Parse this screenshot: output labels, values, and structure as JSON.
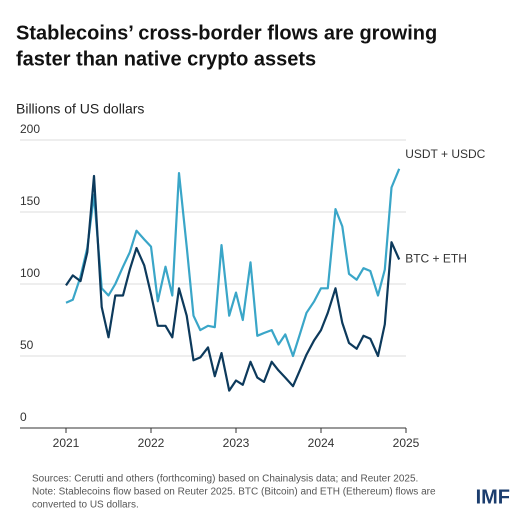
{
  "chart_data": {
    "type": "line",
    "title": [
      "Stablecoins’ cross-border flows are growing",
      "faster than native crypto assets"
    ],
    "y_axis_label": "Billions of US dollars",
    "x": [
      2021.0,
      2021.08,
      2021.17,
      2021.25,
      2021.33,
      2021.42,
      2021.5,
      2021.58,
      2021.67,
      2021.75,
      2021.83,
      2021.92,
      2022.0,
      2022.08,
      2022.17,
      2022.25,
      2022.33,
      2022.42,
      2022.5,
      2022.58,
      2022.67,
      2022.75,
      2022.83,
      2022.92,
      2023.0,
      2023.08,
      2023.17,
      2023.25,
      2023.33,
      2023.42,
      2023.5,
      2023.58,
      2023.67,
      2023.75,
      2023.83,
      2023.92,
      2024.0,
      2024.08,
      2024.17,
      2024.25,
      2024.33,
      2024.42,
      2024.5,
      2024.58,
      2024.67,
      2024.75,
      2024.83,
      2024.92
    ],
    "series": [
      {
        "name": "USDT + USDC",
        "color": "#3aa6c8",
        "values": [
          87,
          89,
          105,
          125,
          162,
          97,
          92,
          100,
          112,
          122,
          137,
          131,
          126,
          88,
          112,
          92,
          177,
          126,
          78,
          68,
          71,
          70,
          127,
          78,
          94,
          75,
          115,
          64,
          66,
          68,
          58,
          65,
          50,
          65,
          80,
          88,
          97,
          97,
          152,
          140,
          107,
          103,
          111,
          109,
          92,
          110,
          167,
          180
        ]
      },
      {
        "name": "BTC + ETH",
        "color": "#0d3a5c",
        "values": [
          99,
          106,
          102,
          122,
          175,
          84,
          63,
          92,
          92,
          110,
          125,
          113,
          93,
          71,
          71,
          63,
          97,
          78,
          47,
          49,
          56,
          36,
          52,
          26,
          33,
          30,
          46,
          35,
          32,
          46,
          40,
          35,
          29,
          40,
          51,
          61,
          68,
          80,
          97,
          73,
          59,
          55,
          64,
          62,
          50,
          72,
          129,
          117
        ]
      }
    ],
    "xlim": [
      2021,
      2025
    ],
    "xticks": [
      2021,
      2022,
      2023,
      2024,
      2025
    ],
    "ylim": [
      0,
      200
    ],
    "yticks": [
      0,
      50,
      100,
      150,
      200
    ],
    "grid": true,
    "notes": [
      "Sources: Cerutti and others (forthcoming) based on Chainalysis data; and Reuter 2025.",
      "Note: Stablecoins flow based on Reuter 2025. BTC (Bitcoin) and ETH (Ethereum) flows are",
      "converted to US dollars."
    ],
    "logo": "IMF"
  }
}
